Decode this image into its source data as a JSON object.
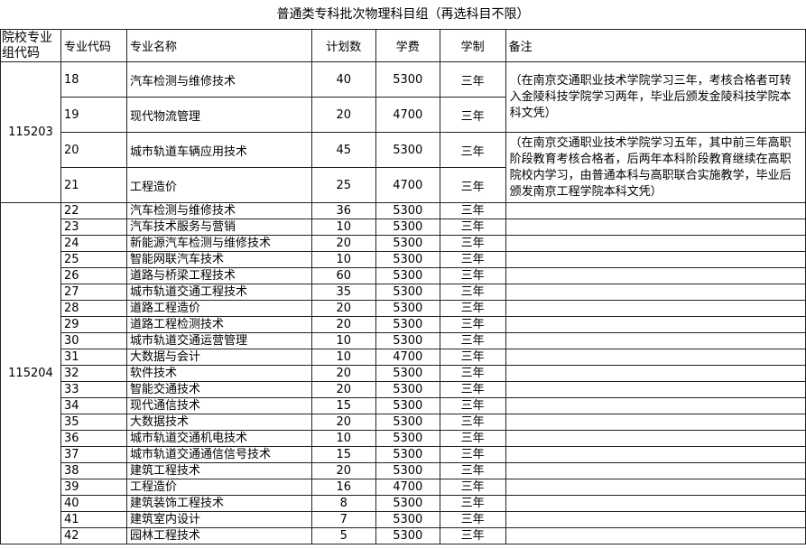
{
  "title": "普通类专科批次物理科目组（再选科目不限）",
  "headers": [
    "院校专业组代码",
    "专业代码",
    "专业名称",
    "计划数",
    "学费",
    "学制",
    "备注"
  ],
  "groups": [
    {
      "code": "115203",
      "rows": [
        {
          "code": "18",
          "name": "汽车检测与维修技术",
          "plan": "40",
          "fee": "5300",
          "years": "三年"
        },
        {
          "code": "19",
          "name": "现代物流管理",
          "plan": "20",
          "fee": "4700",
          "years": "三年"
        },
        {
          "code": "20",
          "name": "城市轨道车辆应用技术",
          "plan": "45",
          "fee": "5300",
          "years": "三年"
        },
        {
          "code": "21",
          "name": "工程造价",
          "plan": "25",
          "fee": "4700",
          "years": "三年"
        }
      ],
      "notes": [
        "（在南京交通职业技术学院学习三年，考核合格者可转入金陵科技学院学习两年，毕业后颁发金陵科技学院本科文凭）",
        "（在南京交通职业技术学院学习五年，其中前三年高职阶段教育考核合格者，后两年本科阶段教育继续在高职院校内学习，由普通本科与高职联合实施教学，毕业后颁发南京工程学院本科文凭）"
      ]
    },
    {
      "code": "115204",
      "rows": [
        {
          "code": "22",
          "name": "汽车检测与维修技术",
          "plan": "36",
          "fee": "5300",
          "years": "三年"
        },
        {
          "code": "23",
          "name": "汽车技术服务与营销",
          "plan": "10",
          "fee": "5300",
          "years": "三年"
        },
        {
          "code": "24",
          "name": "新能源汽车检测与维修技术",
          "plan": "20",
          "fee": "5300",
          "years": "三年"
        },
        {
          "code": "25",
          "name": "智能网联汽车技术",
          "plan": "10",
          "fee": "5300",
          "years": "三年"
        },
        {
          "code": "26",
          "name": "道路与桥梁工程技术",
          "plan": "60",
          "fee": "5300",
          "years": "三年"
        },
        {
          "code": "27",
          "name": "城市轨道交通工程技术",
          "plan": "35",
          "fee": "5300",
          "years": "三年"
        },
        {
          "code": "28",
          "name": "道路工程造价",
          "plan": "20",
          "fee": "5300",
          "years": "三年"
        },
        {
          "code": "29",
          "name": "道路工程检测技术",
          "plan": "20",
          "fee": "5300",
          "years": "三年"
        },
        {
          "code": "30",
          "name": "城市轨道交通运营管理",
          "plan": "10",
          "fee": "5300",
          "years": "三年"
        },
        {
          "code": "31",
          "name": "大数据与会计",
          "plan": "10",
          "fee": "4700",
          "years": "三年"
        },
        {
          "code": "32",
          "name": "软件技术",
          "plan": "20",
          "fee": "5300",
          "years": "三年"
        },
        {
          "code": "33",
          "name": "智能交通技术",
          "plan": "20",
          "fee": "5300",
          "years": "三年"
        },
        {
          "code": "34",
          "name": "现代通信技术",
          "plan": "15",
          "fee": "5300",
          "years": "三年"
        },
        {
          "code": "35",
          "name": "大数据技术",
          "plan": "20",
          "fee": "5300",
          "years": "三年"
        },
        {
          "code": "36",
          "name": "城市轨道交通机电技术",
          "plan": "10",
          "fee": "5300",
          "years": "三年"
        },
        {
          "code": "37",
          "name": "城市轨道交通通信信号技术",
          "plan": "15",
          "fee": "5300",
          "years": "三年"
        },
        {
          "code": "38",
          "name": "建筑工程技术",
          "plan": "20",
          "fee": "5300",
          "years": "三年"
        },
        {
          "code": "39",
          "name": "工程造价",
          "plan": "16",
          "fee": "4700",
          "years": "三年"
        },
        {
          "code": "40",
          "name": "建筑装饰工程技术",
          "plan": "8",
          "fee": "5300",
          "years": "三年"
        },
        {
          "code": "41",
          "name": "建筑室内设计",
          "plan": "7",
          "fee": "5300",
          "years": "三年"
        },
        {
          "code": "42",
          "name": "园林工程技术",
          "plan": "5",
          "fee": "5300",
          "years": "三年"
        }
      ]
    }
  ]
}
